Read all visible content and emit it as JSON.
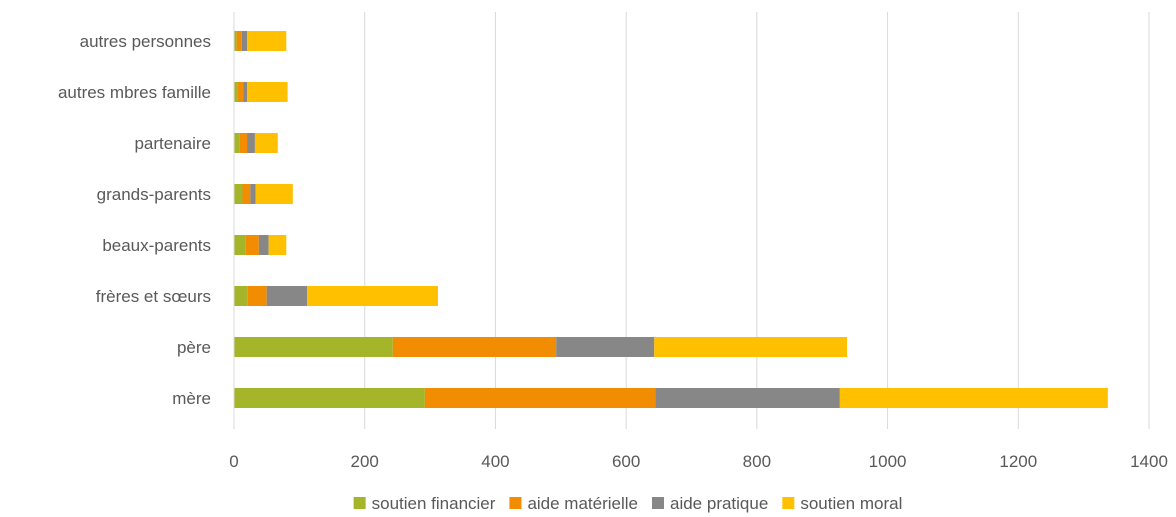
{
  "chart_data": {
    "type": "bar",
    "orientation": "horizontal",
    "stacked": true,
    "title": "",
    "xlabel": "",
    "ylabel": "",
    "xlim": [
      0,
      1400
    ],
    "x_ticks": [
      0,
      200,
      400,
      600,
      800,
      1000,
      1200,
      1400
    ],
    "grid": true,
    "legend_position": "bottom",
    "categories": [
      "mère",
      "père",
      "frères et sœurs",
      "beaux-parents",
      "grands-parents",
      "partenaire",
      "autres mbres famille",
      "autres personnes"
    ],
    "series": [
      {
        "name": "soutien financier",
        "color": "#a5b52a",
        "values": [
          292,
          243,
          21,
          18,
          13,
          8,
          6,
          4
        ]
      },
      {
        "name": "aide matérielle",
        "color": "#f28c00",
        "values": [
          353,
          250,
          29,
          20,
          12,
          12,
          8,
          8
        ]
      },
      {
        "name": "aide pratique",
        "color": "#878787",
        "values": [
          282,
          150,
          62,
          15,
          8,
          12,
          6,
          8
        ]
      },
      {
        "name": "soutien moral",
        "color": "#ffc000",
        "values": [
          410,
          295,
          200,
          27,
          57,
          35,
          62,
          60
        ]
      }
    ]
  }
}
